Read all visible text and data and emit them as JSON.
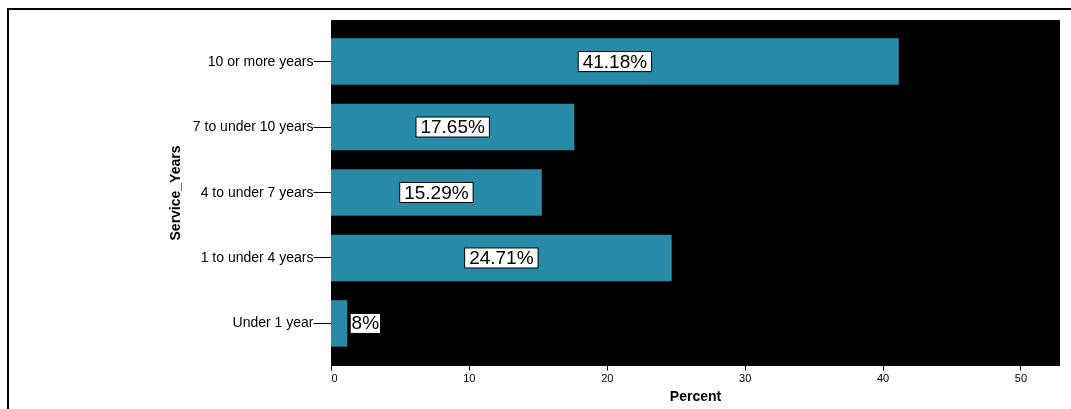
{
  "chart_data": {
    "type": "bar",
    "orientation": "horizontal",
    "xlabel": "Percent",
    "ylabel": "Service_Years",
    "categories": [
      "10 or more years",
      "7 to under 10 years",
      "4 to under 7 years",
      "1 to under 4 years",
      "Under 1 year"
    ],
    "values": [
      41.18,
      17.65,
      15.29,
      24.71,
      1.18
    ],
    "value_labels": [
      "41.18%",
      "17.65%",
      "15.29%",
      "24.71%",
      null
    ],
    "annotations": [
      {
        "text": "8%",
        "x": 1.18,
        "y": "Under 1 year"
      }
    ],
    "color": "#278ba8",
    "xlim": [
      0,
      52.8
    ],
    "xticks": [
      0,
      10,
      20,
      30,
      40,
      50
    ]
  }
}
